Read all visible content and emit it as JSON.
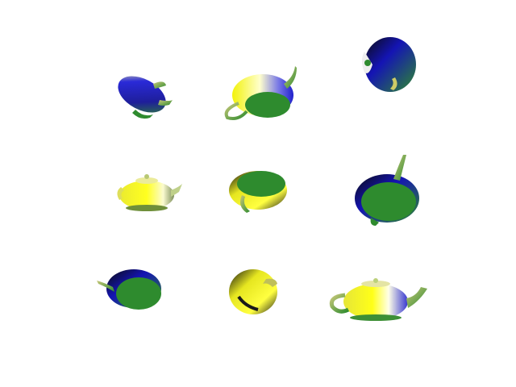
{
  "scene": {
    "background": "#ffffff",
    "palette": {
      "green": "#2e8b2e",
      "blue": "#1e1ed2",
      "yellow": "#f2f20a",
      "dark": "#0b0b0b",
      "white": "#ffffff"
    },
    "teapots": [
      {
        "name": "teapot-1",
        "icon": "teapot-icon",
        "dominant": "blue",
        "view": "tilted-side"
      },
      {
        "name": "teapot-2",
        "icon": "teapot-icon",
        "dominant": "green",
        "view": "bottom"
      },
      {
        "name": "teapot-3",
        "icon": "teapot-icon",
        "dominant": "blue",
        "view": "top-down"
      },
      {
        "name": "teapot-4",
        "icon": "teapot-icon",
        "dominant": "yellow",
        "view": "side"
      },
      {
        "name": "teapot-5",
        "icon": "teapot-icon",
        "dominant": "green",
        "view": "bottom-tilted"
      },
      {
        "name": "teapot-6",
        "icon": "teapot-icon",
        "dominant": "green",
        "view": "bottom-spout-up"
      },
      {
        "name": "teapot-7",
        "icon": "teapot-icon",
        "dominant": "blue",
        "view": "angled-bottom"
      },
      {
        "name": "teapot-8",
        "icon": "teapot-icon",
        "dominant": "yellow",
        "view": "front-tilted"
      },
      {
        "name": "teapot-9",
        "icon": "teapot-icon",
        "dominant": "yellow",
        "view": "side"
      }
    ]
  }
}
